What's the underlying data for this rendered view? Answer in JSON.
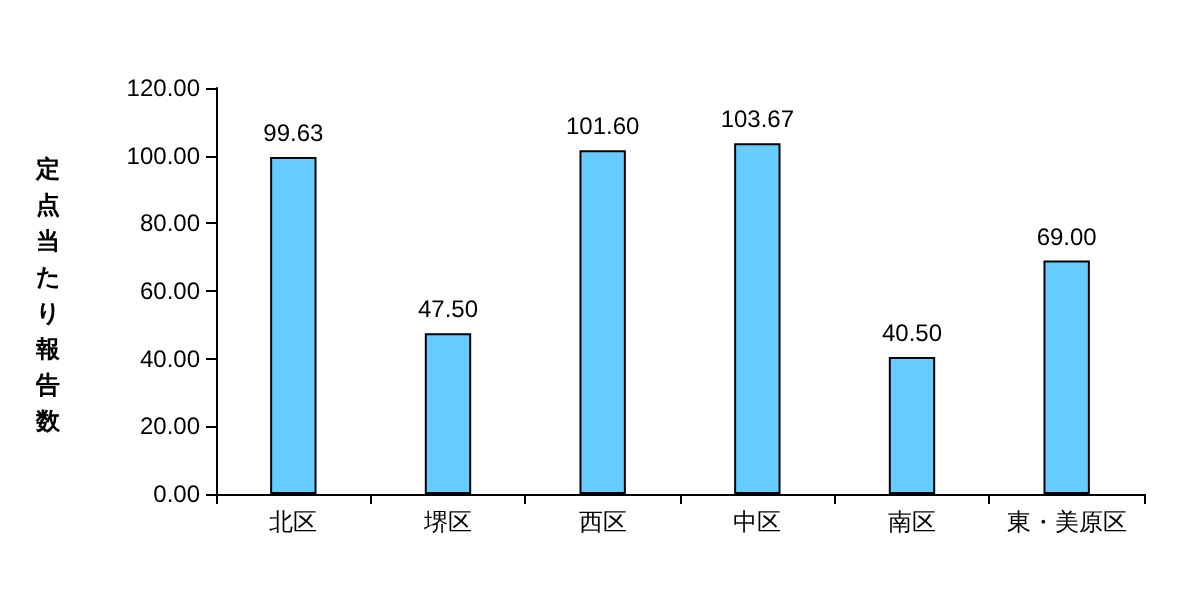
{
  "chart_data": {
    "type": "bar",
    "ylabel": "定点当たり報告数",
    "categories": [
      "北区",
      "堺区",
      "西区",
      "中区",
      "南区",
      "東・美原区"
    ],
    "values": [
      99.63,
      47.5,
      101.6,
      103.67,
      40.5,
      69
    ],
    "value_labels": [
      "99.63",
      "47.50",
      "101.60",
      "103.67",
      "40.50",
      "69.00"
    ],
    "color": "#66ccff",
    "ylim": [
      0,
      120
    ],
    "yticks": [
      {
        "value": 0,
        "label": "0.00"
      },
      {
        "value": 20,
        "label": "20.00"
      },
      {
        "value": 40,
        "label": "40.00"
      },
      {
        "value": 60,
        "label": "60.00"
      },
      {
        "value": 80,
        "label": "80.00"
      },
      {
        "value": 100,
        "label": "100.00"
      },
      {
        "value": 120,
        "label": "120.00"
      }
    ],
    "grid": false
  }
}
